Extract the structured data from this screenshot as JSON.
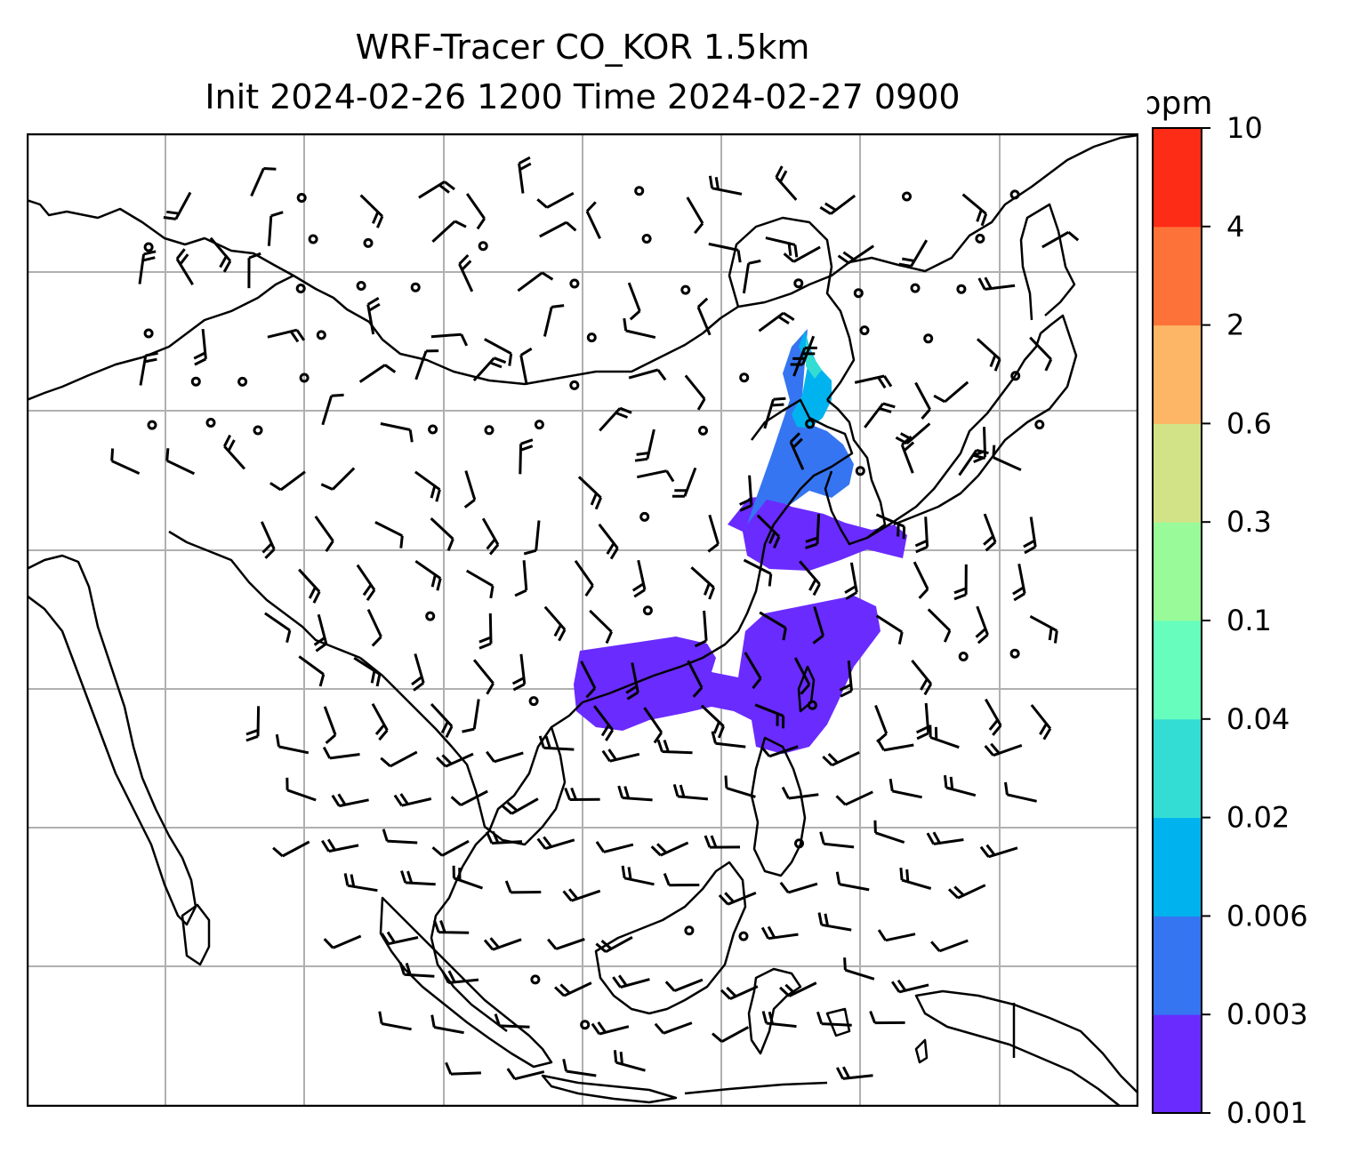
{
  "title": {
    "line1": "WRF-Tracer CO_KOR 1.5km",
    "line2": "Init 2024-02-26 1200 Time 2024-02-27 0900"
  },
  "colorbar": {
    "unit": "ppm",
    "levels": [
      "0.001",
      "0.003",
      "0.006",
      "0.02",
      "0.04",
      "0.1",
      "0.3",
      "0.6",
      "2",
      "4",
      "10"
    ],
    "colors": [
      "#6a2bff",
      "#3575f2",
      "#00b3ee",
      "#33ddd4",
      "#66fdbd",
      "#98fa98",
      "#d2e286",
      "#fdb566",
      "#fd7239",
      "#fd2c17"
    ]
  },
  "map": {
    "coastline_color": "#000000",
    "gridline_color": "#b0b0b0",
    "tracer_color": "#6a2bff"
  }
}
